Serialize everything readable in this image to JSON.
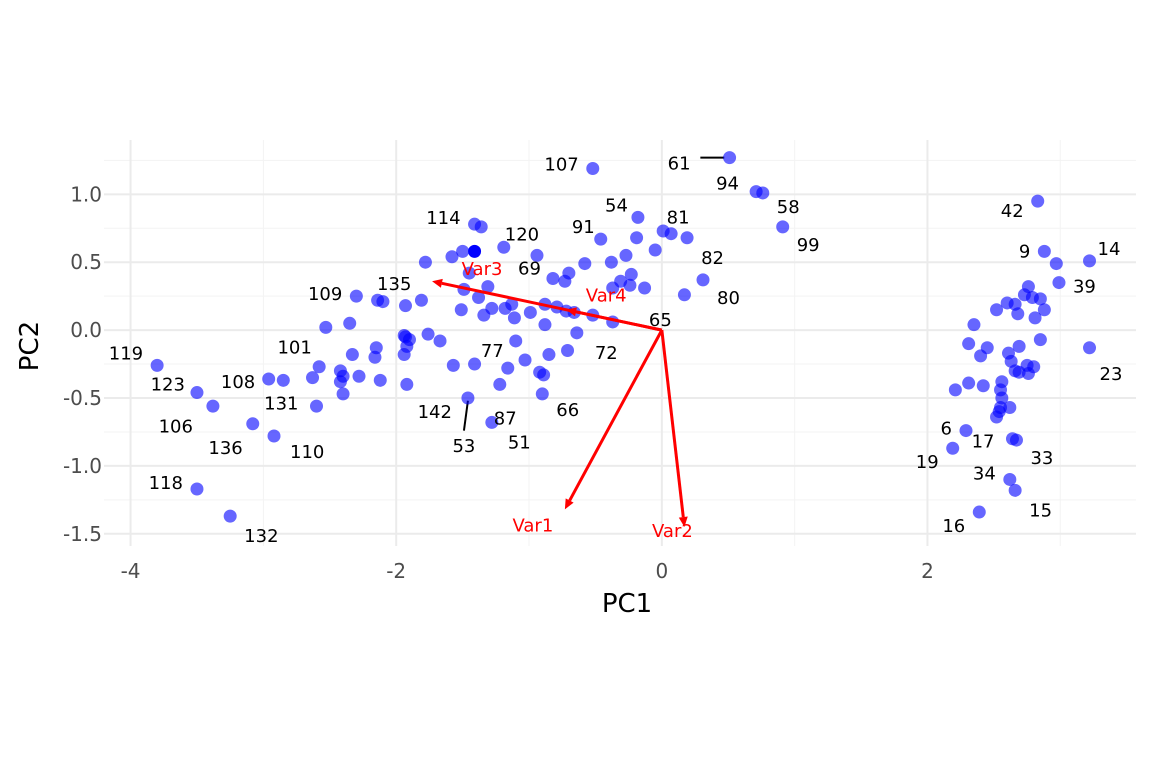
{
  "chart_data": {
    "type": "scatter",
    "xlabel": "PC1",
    "ylabel": "PC2",
    "xlim": [
      -4.2,
      3.57
    ],
    "ylim": [
      -1.59,
      1.4
    ],
    "x_ticks": [
      -4,
      -2,
      0,
      2
    ],
    "y_ticks": [
      1.0,
      0.5,
      0.0,
      -0.5,
      -1.0,
      -1.5
    ],
    "x_tick_labels": [
      "-4",
      "-2",
      "0",
      "2"
    ],
    "y_tick_labels": [
      "1.0",
      "0.5",
      "0.0",
      "-0.5",
      "-1.0",
      "-1.5"
    ],
    "grid": true,
    "point_color": "#0000ff",
    "arrow_color": "#ff0000",
    "points": [
      [
        -0.52,
        1.19
      ],
      [
        0.51,
        1.27
      ],
      [
        0.71,
        1.02
      ],
      [
        0.76,
        1.01
      ],
      [
        0.91,
        0.76
      ],
      [
        2.83,
        0.95
      ],
      [
        -1.41,
        0.78
      ],
      [
        -1.36,
        0.76
      ],
      [
        -0.18,
        0.83
      ],
      [
        -1.19,
        0.61
      ],
      [
        -0.46,
        0.67
      ],
      [
        -0.19,
        0.68
      ],
      [
        0.01,
        0.73
      ],
      [
        0.07,
        0.71
      ],
      [
        0.19,
        0.68
      ],
      [
        -0.05,
        0.59
      ],
      [
        2.88,
        0.58
      ],
      [
        2.97,
        0.49
      ],
      [
        3.22,
        0.51
      ],
      [
        2.99,
        0.35
      ],
      [
        -1.5,
        0.58
      ],
      [
        -1.58,
        0.54
      ],
      [
        -1.78,
        0.5
      ],
      [
        -1.45,
        0.42
      ],
      [
        -1.31,
        0.32
      ],
      [
        -1.49,
        0.3
      ],
      [
        -0.94,
        0.55
      ],
      [
        -0.58,
        0.49
      ],
      [
        -0.7,
        0.42
      ],
      [
        -0.82,
        0.38
      ],
      [
        -0.73,
        0.36
      ],
      [
        -0.38,
        0.5
      ],
      [
        -0.27,
        0.55
      ],
      [
        -0.23,
        0.41
      ],
      [
        -0.31,
        0.36
      ],
      [
        -0.37,
        0.31
      ],
      [
        -0.24,
        0.33
      ],
      [
        -0.13,
        0.31
      ],
      [
        0.31,
        0.37
      ],
      [
        0.17,
        0.26
      ],
      [
        -2.3,
        0.25
      ],
      [
        -2.14,
        0.22
      ],
      [
        -2.1,
        0.21
      ],
      [
        -1.93,
        0.18
      ],
      [
        -1.81,
        0.22
      ],
      [
        -1.51,
        0.15
      ],
      [
        -1.34,
        0.11
      ],
      [
        -1.28,
        0.16
      ],
      [
        -1.38,
        0.24
      ],
      [
        -1.18,
        0.16
      ],
      [
        -1.11,
        0.09
      ],
      [
        -1.13,
        0.19
      ],
      [
        -0.99,
        0.13
      ],
      [
        -0.88,
        0.19
      ],
      [
        -0.79,
        0.17
      ],
      [
        -0.88,
        0.04
      ],
      [
        -0.66,
        0.13
      ],
      [
        -0.52,
        0.11
      ],
      [
        -0.37,
        0.06
      ],
      [
        -0.72,
        0.14
      ],
      [
        -2.53,
        0.02
      ],
      [
        -2.35,
        0.05
      ],
      [
        -1.94,
        -0.04
      ],
      [
        -1.76,
        -0.03
      ],
      [
        -1.9,
        -0.07
      ],
      [
        -1.92,
        -0.12
      ],
      [
        -1.94,
        -0.18
      ],
      [
        -1.67,
        -0.08
      ],
      [
        -1.1,
        -0.08
      ],
      [
        -0.64,
        -0.02
      ],
      [
        -0.71,
        -0.15
      ],
      [
        -0.85,
        -0.18
      ],
      [
        -1.03,
        -0.22
      ],
      [
        -1.57,
        -0.26
      ],
      [
        -1.41,
        -0.25
      ],
      [
        -1.16,
        -0.28
      ],
      [
        -2.33,
        -0.18
      ],
      [
        -2.16,
        -0.2
      ],
      [
        -2.15,
        -0.13
      ],
      [
        -2.42,
        -0.3
      ],
      [
        -2.58,
        -0.27
      ],
      [
        -2.28,
        -0.34
      ],
      [
        -2.63,
        -0.35
      ],
      [
        -2.42,
        -0.38
      ],
      [
        -2.12,
        -0.37
      ],
      [
        -1.92,
        -0.4
      ],
      [
        -1.22,
        -0.4
      ],
      [
        -0.92,
        -0.31
      ],
      [
        -0.89,
        -0.33
      ],
      [
        -0.9,
        -0.47
      ],
      [
        -3.8,
        -0.26
      ],
      [
        -2.96,
        -0.36
      ],
      [
        -2.85,
        -0.37
      ],
      [
        -3.5,
        -0.46
      ],
      [
        -3.38,
        -0.56
      ],
      [
        -2.6,
        -0.56
      ],
      [
        -2.4,
        -0.47
      ],
      [
        -1.46,
        -0.5
      ],
      [
        -1.28,
        -0.68
      ],
      [
        -3.08,
        -0.69
      ],
      [
        -2.92,
        -0.78
      ],
      [
        -3.5,
        -1.17
      ],
      [
        -3.25,
        -1.37
      ],
      [
        2.35,
        0.04
      ],
      [
        2.52,
        0.15
      ],
      [
        2.6,
        0.2
      ],
      [
        2.66,
        0.19
      ],
      [
        2.73,
        0.26
      ],
      [
        2.79,
        0.24
      ],
      [
        2.85,
        0.23
      ],
      [
        2.76,
        0.32
      ],
      [
        2.68,
        0.12
      ],
      [
        2.81,
        0.09
      ],
      [
        2.88,
        0.15
      ],
      [
        2.31,
        -0.1
      ],
      [
        2.45,
        -0.13
      ],
      [
        2.85,
        -0.07
      ],
      [
        2.69,
        -0.12
      ],
      [
        2.4,
        -0.19
      ],
      [
        2.61,
        -0.17
      ],
      [
        2.63,
        -0.23
      ],
      [
        2.66,
        -0.3
      ],
      [
        2.69,
        -0.31
      ],
      [
        2.75,
        -0.26
      ],
      [
        2.76,
        -0.32
      ],
      [
        2.8,
        -0.27
      ],
      [
        3.22,
        -0.13
      ],
      [
        2.56,
        -0.38
      ],
      [
        2.55,
        -0.44
      ],
      [
        2.42,
        -0.41
      ],
      [
        2.31,
        -0.39
      ],
      [
        2.21,
        -0.44
      ],
      [
        2.56,
        -0.5
      ],
      [
        2.55,
        -0.57
      ],
      [
        2.62,
        -0.57
      ],
      [
        2.52,
        -0.64
      ],
      [
        2.54,
        -0.6
      ],
      [
        2.29,
        -0.74
      ],
      [
        2.64,
        -0.8
      ],
      [
        2.67,
        -0.81
      ],
      [
        2.19,
        -0.87
      ],
      [
        2.62,
        -1.1
      ],
      [
        2.66,
        -1.18
      ],
      [
        2.39,
        -1.34
      ],
      [
        -1.93,
        -0.05
      ],
      [
        -2.4,
        -0.34
      ]
    ],
    "highlight_point": [
      -1.41,
      0.58
    ],
    "labels": [
      {
        "text": "107",
        "x": -0.52,
        "y": 1.19,
        "anchor": "end",
        "dx": -14,
        "dy": -4
      },
      {
        "text": "61",
        "x": 0.51,
        "y": 1.27,
        "anchor": "end",
        "dx": -39,
        "dy": 6
      },
      {
        "text": "94",
        "x": 0.51,
        "y": 1.27,
        "anchor": "middle",
        "dx": -2,
        "dy": 26
      },
      {
        "text": "58",
        "x": 0.76,
        "y": 1.01,
        "anchor": "start",
        "dx": 14,
        "dy": 14
      },
      {
        "text": "99",
        "x": 0.91,
        "y": 0.76,
        "anchor": "start",
        "dx": 14,
        "dy": 18
      },
      {
        "text": "54",
        "x": -0.18,
        "y": 0.83,
        "anchor": "end",
        "dx": -10,
        "dy": -12
      },
      {
        "text": "81",
        "x": 0.07,
        "y": 0.71,
        "anchor": "middle",
        "dx": 7,
        "dy": -16
      },
      {
        "text": "82",
        "x": 0.19,
        "y": 0.68,
        "anchor": "start",
        "dx": 14,
        "dy": 20
      },
      {
        "text": "91",
        "x": -0.46,
        "y": 0.67,
        "anchor": "end",
        "dx": -6,
        "dy": -12
      },
      {
        "text": "120",
        "x": -1.19,
        "y": 0.61,
        "anchor": "start",
        "dx": 1,
        "dy": -13
      },
      {
        "text": "114",
        "x": -1.41,
        "y": 0.78,
        "anchor": "end",
        "dx": -14,
        "dy": -6
      },
      {
        "text": "42",
        "x": 2.83,
        "y": 0.95,
        "anchor": "end",
        "dx": -14,
        "dy": 10
      },
      {
        "text": "9",
        "x": 2.88,
        "y": 0.58,
        "anchor": "end",
        "dx": -14,
        "dy": 0
      },
      {
        "text": "14",
        "x": 3.22,
        "y": 0.51,
        "anchor": "start",
        "dx": 8,
        "dy": -12
      },
      {
        "text": "39",
        "x": 2.99,
        "y": 0.35,
        "anchor": "start",
        "dx": 14,
        "dy": 4
      },
      {
        "text": "69",
        "x": -0.82,
        "y": 0.38,
        "anchor": "end",
        "dx": -12,
        "dy": -10
      },
      {
        "text": "135",
        "x": -1.78,
        "y": 0.5,
        "anchor": "end",
        "dx": -14,
        "dy": 22
      },
      {
        "text": "109",
        "x": -2.3,
        "y": 0.25,
        "anchor": "end",
        "dx": -14,
        "dy": -2
      },
      {
        "text": "80",
        "x": 0.31,
        "y": 0.37,
        "anchor": "start",
        "dx": 14,
        "dy": 18
      },
      {
        "text": "65",
        "x": 0.0,
        "y": 0.0,
        "anchor": "end",
        "dx": 10,
        "dy": -10
      },
      {
        "text": "72",
        "x": -0.64,
        "y": -0.02,
        "anchor": "start",
        "dx": 18,
        "dy": 20
      },
      {
        "text": "77",
        "x": -1.1,
        "y": -0.08,
        "anchor": "end",
        "dx": -12,
        "dy": 10
      },
      {
        "text": "101",
        "x": -2.53,
        "y": 0.02,
        "anchor": "end",
        "dx": -14,
        "dy": 20
      },
      {
        "text": "119",
        "x": -3.8,
        "y": -0.26,
        "anchor": "end",
        "dx": -14,
        "dy": -12
      },
      {
        "text": "123",
        "x": -3.5,
        "y": -0.46,
        "anchor": "end",
        "dx": -12,
        "dy": -8
      },
      {
        "text": "108",
        "x": -3.38,
        "y": -0.56,
        "anchor": "start",
        "dx": 8,
        "dy": -24
      },
      {
        "text": "131",
        "x": -2.63,
        "y": -0.35,
        "anchor": "end",
        "dx": -14,
        "dy": 26
      },
      {
        "text": "106",
        "x": -3.5,
        "y": -0.46,
        "anchor": "end",
        "dx": -4,
        "dy": 34
      },
      {
        "text": "136",
        "x": -3.08,
        "y": -0.69,
        "anchor": "end",
        "dx": -10,
        "dy": 24
      },
      {
        "text": "110",
        "x": -2.92,
        "y": -0.78,
        "anchor": "start",
        "dx": 16,
        "dy": 16
      },
      {
        "text": "142",
        "x": -1.46,
        "y": -0.5,
        "anchor": "end",
        "dx": -16,
        "dy": 14
      },
      {
        "text": "87",
        "x": -1.22,
        "y": -0.4,
        "anchor": "start",
        "dx": -6,
        "dy": 34
      },
      {
        "text": "66",
        "x": -0.9,
        "y": -0.47,
        "anchor": "start",
        "dx": 14,
        "dy": 16
      },
      {
        "text": "53",
        "x": -1.46,
        "y": -0.5,
        "anchor": "middle",
        "dx": -4,
        "dy": 48
      },
      {
        "text": "51",
        "x": -1.28,
        "y": -0.68,
        "anchor": "start",
        "dx": 16,
        "dy": 20
      },
      {
        "text": "118",
        "x": -3.5,
        "y": -1.17,
        "anchor": "end",
        "dx": -14,
        "dy": -6
      },
      {
        "text": "132",
        "x": -3.25,
        "y": -1.37,
        "anchor": "start",
        "dx": 14,
        "dy": 20
      },
      {
        "text": "23",
        "x": 3.22,
        "y": -0.13,
        "anchor": "start",
        "dx": 10,
        "dy": 26
      },
      {
        "text": "6",
        "x": 2.29,
        "y": -0.74,
        "anchor": "end",
        "dx": -14,
        "dy": -2
      },
      {
        "text": "17",
        "x": 2.55,
        "y": -0.57,
        "anchor": "end",
        "dx": -6,
        "dy": 34
      },
      {
        "text": "33",
        "x": 2.67,
        "y": -0.81,
        "anchor": "start",
        "dx": 14,
        "dy": 18
      },
      {
        "text": "19",
        "x": 2.19,
        "y": -0.87,
        "anchor": "end",
        "dx": -14,
        "dy": 14
      },
      {
        "text": "34",
        "x": 2.62,
        "y": -1.1,
        "anchor": "end",
        "dx": -14,
        "dy": -6
      },
      {
        "text": "15",
        "x": 2.66,
        "y": -1.18,
        "anchor": "start",
        "dx": 14,
        "dy": 20
      },
      {
        "text": "16",
        "x": 2.39,
        "y": -1.34,
        "anchor": "end",
        "dx": -14,
        "dy": 14
      }
    ],
    "leaders": [
      {
        "x1": 0.29,
        "y1": 1.27,
        "x2": 0.47,
        "y2": 1.27
      },
      {
        "x1": -1.46,
        "y1": -0.52,
        "x2": -1.49,
        "y2": -0.74
      }
    ],
    "arrows": [
      {
        "name": "Var1",
        "x": -0.73,
        "y": -1.32,
        "label_dx": -32,
        "label_dy": 22
      },
      {
        "name": "Var2",
        "x": 0.17,
        "y": -1.45,
        "label_dx": -12,
        "label_dy": 10
      },
      {
        "name": "Var3",
        "x": -1.73,
        "y": 0.36,
        "label_dx": 50,
        "label_dy": -6
      },
      {
        "name": "Var4",
        "x": -0.72,
        "y": 0.15,
        "label_dx": 40,
        "label_dy": -8
      }
    ]
  }
}
